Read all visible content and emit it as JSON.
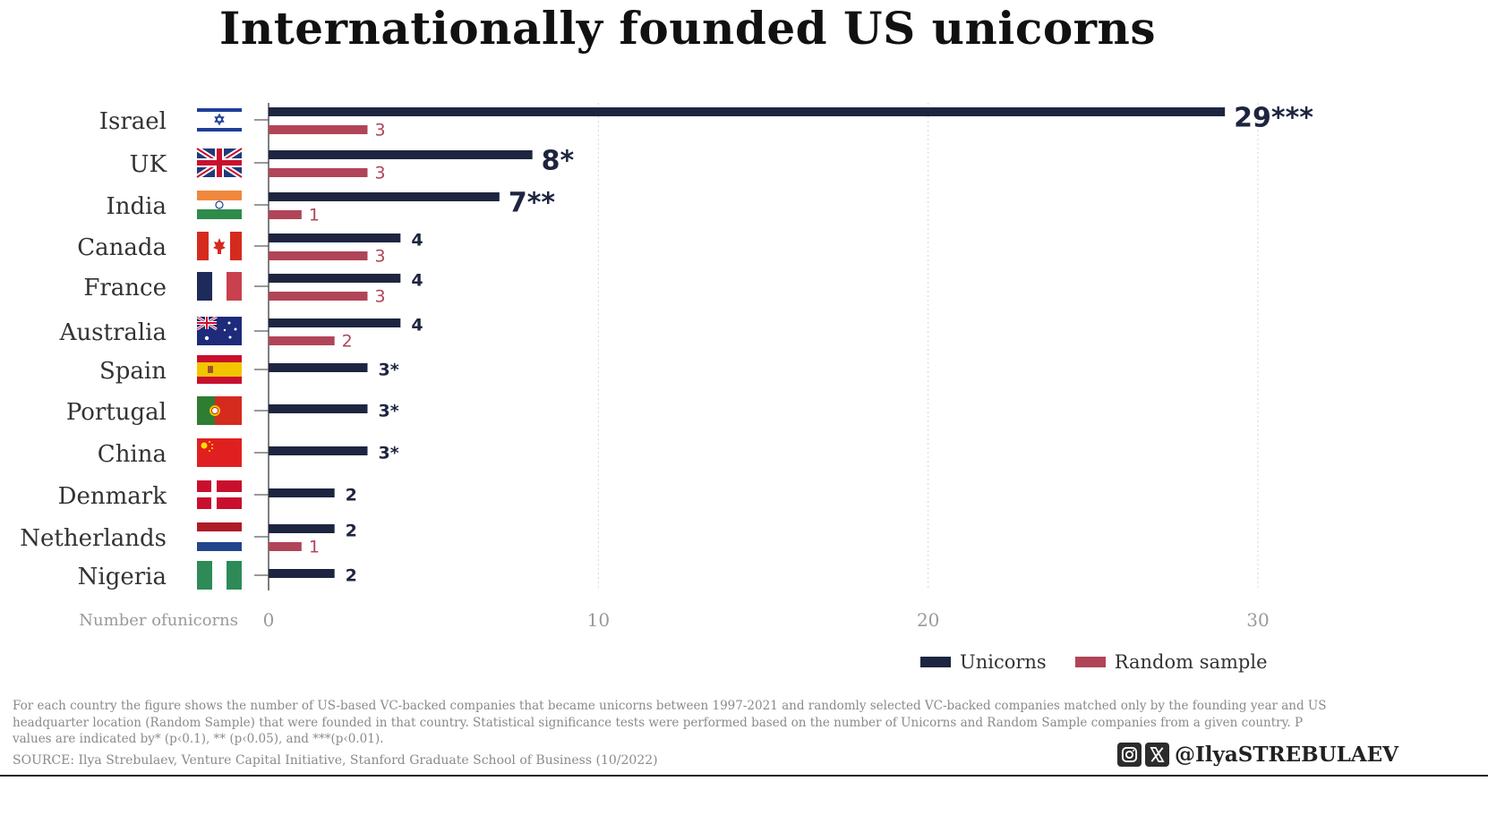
{
  "chart_data": {
    "type": "bar",
    "orientation": "horizontal",
    "title": "Internationally founded US unicorns",
    "xlabel": "Number ofunicorns",
    "xlim": [
      0,
      30
    ],
    "xticks": [
      "0",
      "10",
      "20",
      "30"
    ],
    "grid": "vertical dotted",
    "categories": [
      "Israel",
      "UK",
      "India",
      "Canada",
      "France",
      "Australia",
      "Spain",
      "Portugal",
      "China",
      "Denmark",
      "Netherlands",
      "Nigeria"
    ],
    "series": [
      {
        "name": "Unicorns",
        "color": "#1e2540",
        "values": [
          29,
          8,
          7,
          4,
          4,
          4,
          3,
          3,
          3,
          2,
          2,
          2
        ],
        "labels": [
          "29***",
          "8*",
          "7**",
          "4",
          "4",
          "4",
          "3*",
          "3*",
          "3*",
          "2",
          "2",
          "2"
        ]
      },
      {
        "name": "Random sample",
        "color": "#b04558",
        "values": [
          3,
          3,
          1,
          3,
          3,
          2,
          null,
          null,
          null,
          null,
          1,
          null
        ],
        "labels": [
          "3",
          "3",
          "1",
          "3",
          "3",
          "2",
          "",
          "",
          "",
          "",
          "1",
          ""
        ]
      }
    ],
    "legend": "bottom-right"
  },
  "footer": {
    "note": "For each country the figure shows the number of US-based VC-backed companies that became unicorns between 1997-2021 and randomly selected VC-backed companies matched only by the founding year and US headquarter location (Random Sample) that were founded in that country. Statistical significance tests were performed based on the number of Unicorns and Random Sample companies from a given country. P values are indicated by* (p‹0.1), ** (p‹0.05), and ***(p‹0.01).",
    "source": "SOURCE: Ilya Strebulaev, Venture Capital Initiative, Stanford Graduate School of Business (10/2022)",
    "handle": "@IlyaSTREBULAEV",
    "social_icons": [
      "instagram-icon",
      "x-icon"
    ]
  }
}
